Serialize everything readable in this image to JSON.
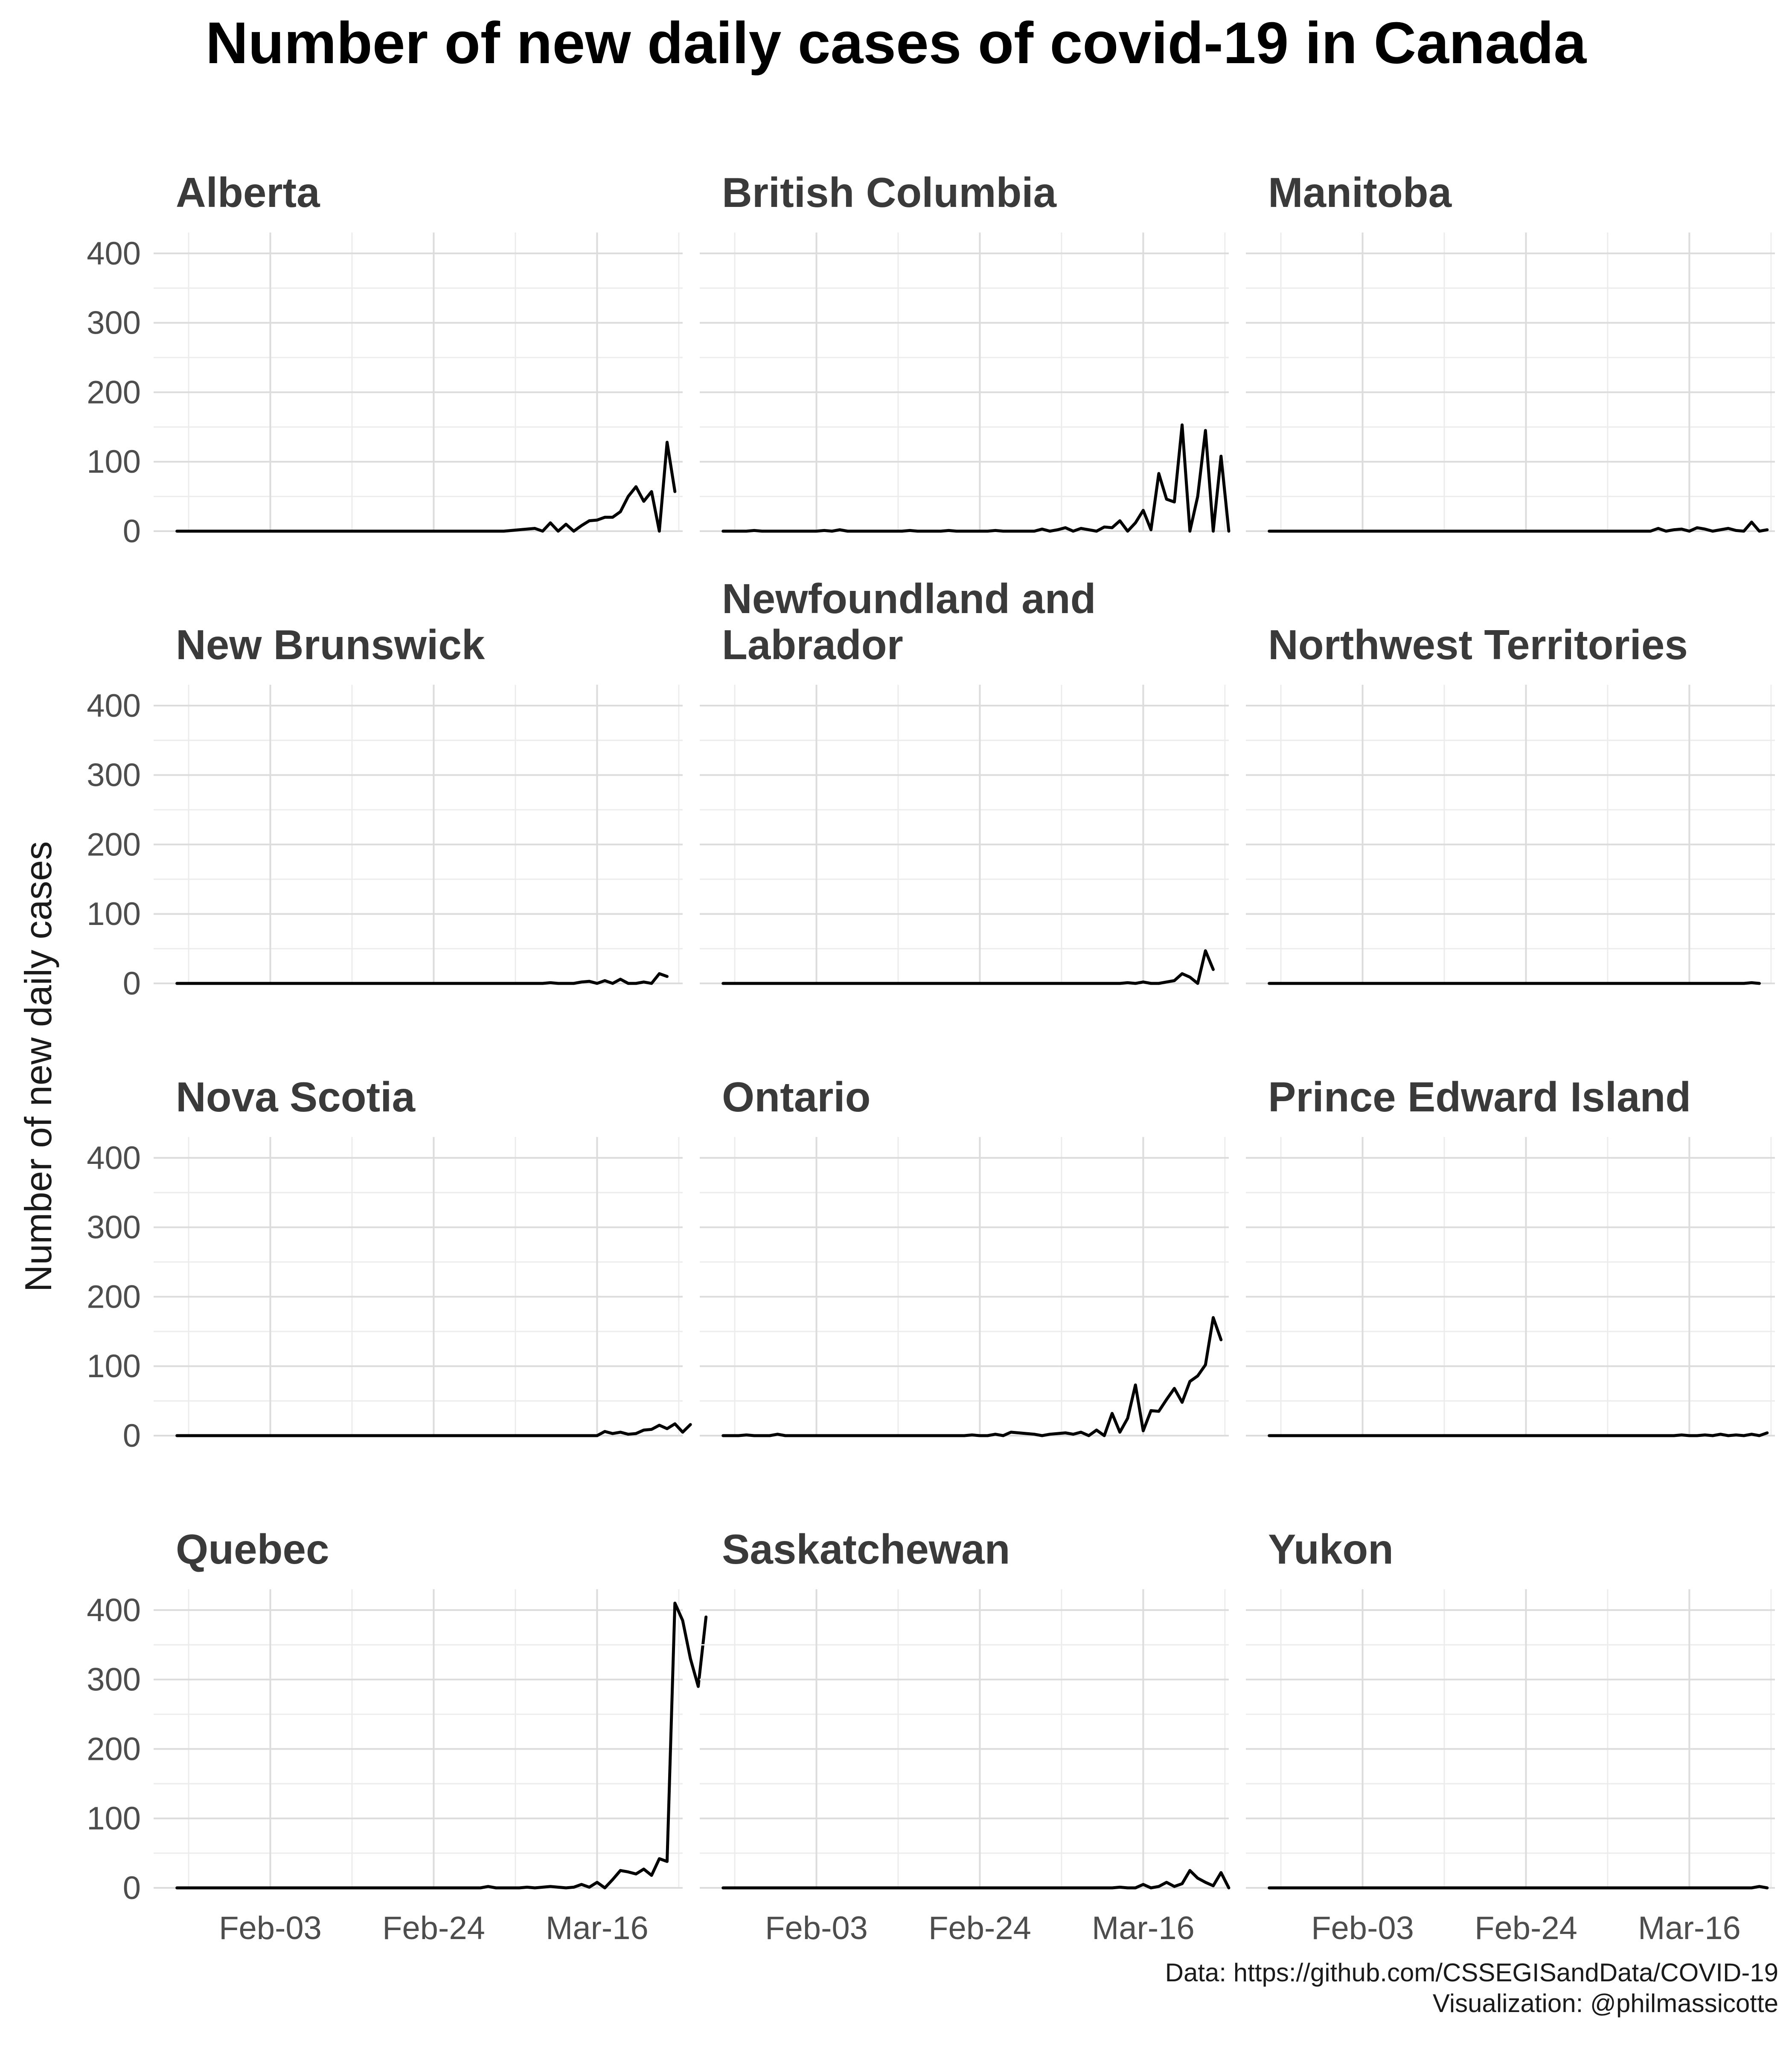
{
  "title": "Number of new daily cases of covid-19 in Canada",
  "caption": {
    "line1": "Data: https://github.com/CSSEGISandData/COVID-19",
    "line2": "Visualization: @philmassicotte"
  },
  "chart_data": {
    "type": "line",
    "title": "Number of new daily cases of covid-19 in Canada",
    "xlabel": "",
    "ylabel": "Number of new daily cases",
    "x_type": "date",
    "x_range": [
      "2020-01-19",
      "2020-03-27"
    ],
    "x_ticks": [
      {
        "date": "2020-02-03",
        "label": "Feb-03"
      },
      {
        "date": "2020-02-24",
        "label": "Feb-24"
      },
      {
        "date": "2020-03-16",
        "label": "Mar-16"
      }
    ],
    "y_ticks": [
      0,
      100,
      200,
      300,
      400
    ],
    "ylim": [
      0,
      400
    ],
    "grid": true,
    "legend": "none",
    "facets": [
      {
        "name": "Alberta",
        "start": "2020-01-22",
        "values": [
          0,
          0,
          0,
          0,
          0,
          0,
          0,
          0,
          0,
          0,
          0,
          0,
          0,
          0,
          0,
          0,
          0,
          0,
          0,
          0,
          0,
          0,
          0,
          0,
          0,
          0,
          0,
          0,
          0,
          0,
          0,
          0,
          0,
          0,
          0,
          0,
          0,
          0,
          0,
          0,
          0,
          0,
          0,
          1,
          2,
          3,
          4,
          0,
          12,
          0,
          10,
          0,
          8,
          15,
          16,
          20,
          20,
          28,
          50,
          64,
          43,
          57,
          0,
          128,
          57
        ]
      },
      {
        "name": "British Columbia",
        "start": "2020-01-22",
        "values": [
          0,
          0,
          0,
          0,
          1,
          0,
          0,
          0,
          0,
          0,
          0,
          0,
          0,
          1,
          0,
          2,
          0,
          0,
          0,
          0,
          0,
          0,
          0,
          0,
          1,
          0,
          0,
          0,
          0,
          1,
          0,
          0,
          0,
          0,
          0,
          1,
          0,
          0,
          0,
          0,
          0,
          3,
          0,
          2,
          5,
          0,
          4,
          2,
          0,
          6,
          5,
          15,
          0,
          12,
          30,
          2,
          83,
          46,
          42,
          153,
          0,
          50,
          145,
          0,
          108,
          0
        ]
      },
      {
        "name": "Manitoba",
        "start": "2020-01-22",
        "values": [
          0,
          0,
          0,
          0,
          0,
          0,
          0,
          0,
          0,
          0,
          0,
          0,
          0,
          0,
          0,
          0,
          0,
          0,
          0,
          0,
          0,
          0,
          0,
          0,
          0,
          0,
          0,
          0,
          0,
          0,
          0,
          0,
          0,
          0,
          0,
          0,
          0,
          0,
          0,
          0,
          0,
          0,
          0,
          0,
          0,
          0,
          0,
          0,
          0,
          0,
          4,
          0,
          2,
          3,
          0,
          5,
          3,
          0,
          2,
          4,
          1,
          0,
          13,
          0,
          2
        ]
      },
      {
        "name": "New Brunswick",
        "start": "2020-01-22",
        "values": [
          0,
          0,
          0,
          0,
          0,
          0,
          0,
          0,
          0,
          0,
          0,
          0,
          0,
          0,
          0,
          0,
          0,
          0,
          0,
          0,
          0,
          0,
          0,
          0,
          0,
          0,
          0,
          0,
          0,
          0,
          0,
          0,
          0,
          0,
          0,
          0,
          0,
          0,
          0,
          0,
          0,
          0,
          0,
          0,
          0,
          0,
          0,
          0,
          1,
          0,
          0,
          0,
          2,
          3,
          0,
          4,
          0,
          6,
          0,
          0,
          2,
          0,
          14,
          10
        ]
      },
      {
        "name": "Newfoundland and Labrador",
        "start": "2020-01-22",
        "values": [
          0,
          0,
          0,
          0,
          0,
          0,
          0,
          0,
          0,
          0,
          0,
          0,
          0,
          0,
          0,
          0,
          0,
          0,
          0,
          0,
          0,
          0,
          0,
          0,
          0,
          0,
          0,
          0,
          0,
          0,
          0,
          0,
          0,
          0,
          0,
          0,
          0,
          0,
          0,
          0,
          0,
          0,
          0,
          0,
          0,
          0,
          0,
          0,
          0,
          0,
          0,
          0,
          1,
          0,
          2,
          0,
          0,
          2,
          4,
          14,
          9,
          0,
          47,
          20
        ]
      },
      {
        "name": "Northwest Territories",
        "start": "2020-01-22",
        "values": [
          0,
          0,
          0,
          0,
          0,
          0,
          0,
          0,
          0,
          0,
          0,
          0,
          0,
          0,
          0,
          0,
          0,
          0,
          0,
          0,
          0,
          0,
          0,
          0,
          0,
          0,
          0,
          0,
          0,
          0,
          0,
          0,
          0,
          0,
          0,
          0,
          0,
          0,
          0,
          0,
          0,
          0,
          0,
          0,
          0,
          0,
          0,
          0,
          0,
          0,
          0,
          0,
          0,
          0,
          0,
          0,
          0,
          0,
          0,
          0,
          0,
          0,
          1,
          0
        ]
      },
      {
        "name": "Nova Scotia",
        "start": "2020-01-22",
        "values": [
          0,
          0,
          0,
          0,
          0,
          0,
          0,
          0,
          0,
          0,
          0,
          0,
          0,
          0,
          0,
          0,
          0,
          0,
          0,
          0,
          0,
          0,
          0,
          0,
          0,
          0,
          0,
          0,
          0,
          0,
          0,
          0,
          0,
          0,
          0,
          0,
          0,
          0,
          0,
          0,
          0,
          0,
          0,
          0,
          0,
          0,
          0,
          0,
          0,
          0,
          0,
          0,
          0,
          0,
          0,
          6,
          3,
          5,
          2,
          3,
          8,
          9,
          15,
          10,
          17,
          5,
          16
        ]
      },
      {
        "name": "Ontario",
        "start": "2020-01-22",
        "values": [
          0,
          0,
          0,
          1,
          0,
          0,
          0,
          2,
          0,
          0,
          0,
          0,
          0,
          0,
          0,
          0,
          0,
          0,
          0,
          0,
          0,
          0,
          0,
          0,
          0,
          0,
          0,
          0,
          0,
          0,
          0,
          0,
          1,
          0,
          0,
          2,
          0,
          5,
          4,
          3,
          2,
          0,
          2,
          3,
          4,
          2,
          5,
          0,
          8,
          0,
          32,
          5,
          25,
          73,
          7,
          36,
          35,
          52,
          68,
          48,
          78,
          86,
          102,
          170,
          138
        ]
      },
      {
        "name": "Prince Edward Island",
        "start": "2020-01-22",
        "values": [
          0,
          0,
          0,
          0,
          0,
          0,
          0,
          0,
          0,
          0,
          0,
          0,
          0,
          0,
          0,
          0,
          0,
          0,
          0,
          0,
          0,
          0,
          0,
          0,
          0,
          0,
          0,
          0,
          0,
          0,
          0,
          0,
          0,
          0,
          0,
          0,
          0,
          0,
          0,
          0,
          0,
          0,
          0,
          0,
          0,
          0,
          0,
          0,
          0,
          0,
          0,
          0,
          0,
          1,
          0,
          0,
          1,
          0,
          2,
          0,
          1,
          0,
          2,
          0,
          4
        ]
      },
      {
        "name": "Quebec",
        "start": "2020-01-22",
        "values": [
          0,
          0,
          0,
          0,
          0,
          0,
          0,
          0,
          0,
          0,
          0,
          0,
          0,
          0,
          0,
          0,
          0,
          0,
          0,
          0,
          0,
          0,
          0,
          0,
          0,
          0,
          0,
          0,
          0,
          0,
          0,
          0,
          0,
          0,
          0,
          0,
          0,
          0,
          0,
          0,
          2,
          0,
          0,
          0,
          0,
          1,
          0,
          1,
          2,
          1,
          0,
          1,
          5,
          1,
          8,
          0,
          12,
          25,
          23,
          20,
          27,
          18,
          42,
          38,
          410,
          385,
          330,
          290,
          390
        ]
      },
      {
        "name": "Saskatchewan",
        "start": "2020-01-22",
        "values": [
          0,
          0,
          0,
          0,
          0,
          0,
          0,
          0,
          0,
          0,
          0,
          0,
          0,
          0,
          0,
          0,
          0,
          0,
          0,
          0,
          0,
          0,
          0,
          0,
          0,
          0,
          0,
          0,
          0,
          0,
          0,
          0,
          0,
          0,
          0,
          0,
          0,
          0,
          0,
          0,
          0,
          0,
          0,
          0,
          0,
          0,
          0,
          0,
          0,
          0,
          0,
          1,
          0,
          0,
          5,
          0,
          2,
          8,
          2,
          6,
          25,
          14,
          8,
          3,
          22,
          0
        ]
      },
      {
        "name": "Yukon",
        "start": "2020-01-22",
        "values": [
          0,
          0,
          0,
          0,
          0,
          0,
          0,
          0,
          0,
          0,
          0,
          0,
          0,
          0,
          0,
          0,
          0,
          0,
          0,
          0,
          0,
          0,
          0,
          0,
          0,
          0,
          0,
          0,
          0,
          0,
          0,
          0,
          0,
          0,
          0,
          0,
          0,
          0,
          0,
          0,
          0,
          0,
          0,
          0,
          0,
          0,
          0,
          0,
          0,
          0,
          0,
          0,
          0,
          0,
          0,
          0,
          0,
          0,
          0,
          0,
          0,
          0,
          0,
          2,
          0
        ]
      }
    ]
  }
}
